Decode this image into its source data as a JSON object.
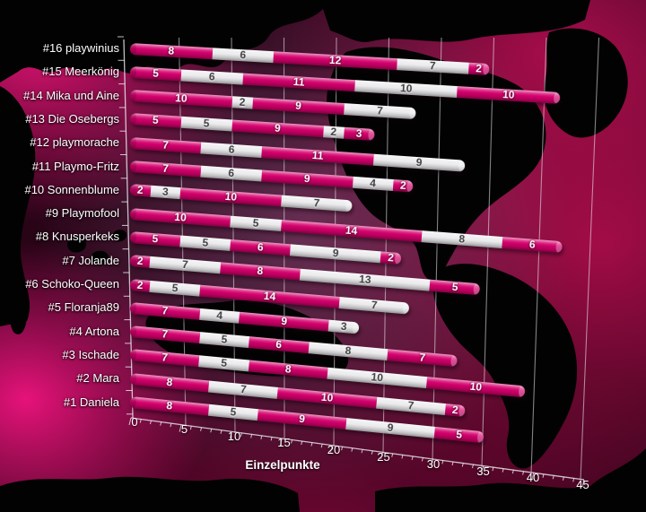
{
  "chart_data": {
    "type": "bar",
    "variant": "3d-cylinder-stacked-horizontal",
    "xlabel": "Einzelpunkte",
    "xlim": [
      0,
      45
    ],
    "x_ticks": [
      0,
      5,
      10,
      15,
      20,
      25,
      30,
      35,
      40,
      45
    ],
    "grid": true,
    "legend": "none",
    "segment_colors": {
      "odd": "#d4006c",
      "even": "#ececee"
    },
    "background_style": {
      "ocean_glow": "#e0147a",
      "land": "#000000"
    },
    "rows": [
      {
        "label": "#16 playwinius",
        "segments": [
          8,
          6,
          12,
          7,
          2
        ]
      },
      {
        "label": "#15 Meerkönig",
        "segments": [
          5,
          6,
          11,
          10,
          10
        ]
      },
      {
        "label": "#14 Mika und Aine",
        "segments": [
          10,
          2,
          9,
          7
        ]
      },
      {
        "label": "#13 Die Osebergs",
        "segments": [
          5,
          5,
          9,
          2,
          3
        ]
      },
      {
        "label": "#12 playmorache",
        "segments": [
          7,
          6,
          11,
          9
        ]
      },
      {
        "label": "#11 Playmo-Fritz",
        "segments": [
          7,
          6,
          9,
          4,
          2
        ]
      },
      {
        "label": "#10 Sonnenblume",
        "segments": [
          2,
          3,
          10,
          7
        ]
      },
      {
        "label": "#9 Playmofool",
        "segments": [
          10,
          5,
          14,
          8,
          6
        ]
      },
      {
        "label": "#8 Knusperkeks",
        "segments": [
          5,
          5,
          6,
          9,
          2
        ]
      },
      {
        "label": "#7 Jolande",
        "segments": [
          2,
          7,
          8,
          13,
          5
        ]
      },
      {
        "label": "#6 Schoko-Queen",
        "segments": [
          2,
          5,
          14,
          7
        ]
      },
      {
        "label": "#5 Floranja89",
        "segments": [
          7,
          4,
          9,
          3
        ]
      },
      {
        "label": "#4 Artona",
        "segments": [
          7,
          5,
          6,
          8,
          7
        ]
      },
      {
        "label": "#3 Ischade",
        "segments": [
          7,
          5,
          8,
          10,
          10
        ]
      },
      {
        "label": "#2 Mara",
        "segments": [
          8,
          7,
          10,
          7,
          2
        ]
      },
      {
        "label": "#1 Daniela",
        "segments": [
          8,
          5,
          9,
          9,
          5
        ]
      }
    ]
  }
}
